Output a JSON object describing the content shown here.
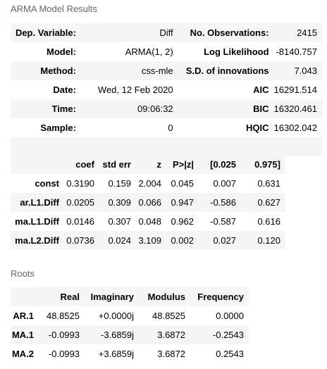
{
  "captions": {
    "summary": "ARMA Model Results",
    "roots": "Roots"
  },
  "summary_rows": [
    {
      "label1": "Dep. Variable:",
      "value1": "Diff",
      "label2": "No. Observations:",
      "value2": "2415"
    },
    {
      "label1": "Model:",
      "value1": "ARMA(1, 2)",
      "label2": "Log Likelihood",
      "value2": "-8140.757"
    },
    {
      "label1": "Method:",
      "value1": "css-mle",
      "label2": "S.D. of innovations",
      "value2": "7.043"
    },
    {
      "label1": "Date:",
      "value1": "Wed, 12 Feb 2020",
      "label2": "AIC",
      "value2": "16291.514"
    },
    {
      "label1": "Time:",
      "value1": "09:06:32",
      "label2": "BIC",
      "value2": "16320.461"
    },
    {
      "label1": "Sample:",
      "value1": "0",
      "label2": "HQIC",
      "value2": "16302.042"
    },
    {
      "label1": "",
      "value1": "",
      "label2": "",
      "value2": ""
    }
  ],
  "coef_table": {
    "headers": [
      "",
      "coef",
      "std err",
      "z",
      "P>|z|",
      "[0.025",
      "0.975]"
    ],
    "rows": [
      {
        "name": "const",
        "values": [
          "0.3190",
          "0.159",
          "2.004",
          "0.045",
          "0.007",
          "0.631"
        ]
      },
      {
        "name": "ar.L1.Diff",
        "values": [
          "0.0205",
          "0.309",
          "0.066",
          "0.947",
          "-0.586",
          "0.627"
        ]
      },
      {
        "name": "ma.L1.Diff",
        "values": [
          "0.0146",
          "0.307",
          "0.048",
          "0.962",
          "-0.587",
          "0.616"
        ]
      },
      {
        "name": "ma.L2.Diff",
        "values": [
          "0.0736",
          "0.024",
          "3.109",
          "0.002",
          "0.027",
          "0.120"
        ]
      }
    ]
  },
  "roots_table": {
    "headers": [
      "",
      "Real",
      "Imaginary",
      "Modulus",
      "Frequency"
    ],
    "rows": [
      {
        "name": "AR.1",
        "values": [
          "48.8525",
          "+0.0000j",
          "48.8525",
          "0.0000"
        ]
      },
      {
        "name": "MA.1",
        "values": [
          "-0.0993",
          "-3.6859j",
          "3.6872",
          "-0.2543"
        ]
      },
      {
        "name": "MA.2",
        "values": [
          "-0.0993",
          "+3.6859j",
          "3.6872",
          "0.2543"
        ]
      }
    ]
  }
}
